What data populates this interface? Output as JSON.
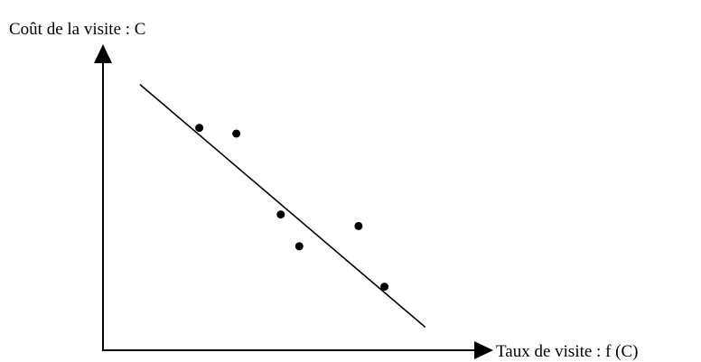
{
  "chart_data": {
    "type": "scatter",
    "xlabel": "Taux de visite : f (C)",
    "ylabel": "Coût de la visite : C",
    "xlim": [
      0,
      10
    ],
    "ylim": [
      0,
      10
    ],
    "points": [
      {
        "x": 2.6,
        "y": 7.7
      },
      {
        "x": 3.6,
        "y": 7.5
      },
      {
        "x": 4.8,
        "y": 4.7
      },
      {
        "x": 5.3,
        "y": 3.6
      },
      {
        "x": 6.9,
        "y": 4.3
      },
      {
        "x": 7.6,
        "y": 2.2
      }
    ],
    "trend_line": {
      "x": [
        1.0,
        8.7
      ],
      "y": [
        9.2,
        0.8
      ]
    },
    "ticks": false,
    "grid": false,
    "legend": false,
    "colors": {
      "axis": "#000000",
      "point": "#000000",
      "line": "#000000"
    }
  }
}
